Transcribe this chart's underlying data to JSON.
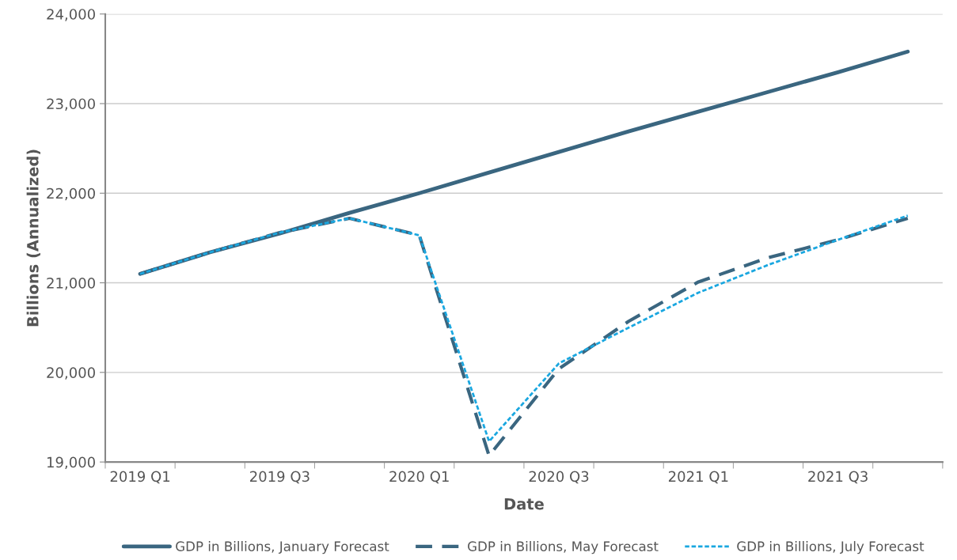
{
  "chart_data": {
    "type": "line",
    "xlabel": "Date",
    "ylabel": "Billions (Annualized)",
    "categories": [
      "2019 Q1",
      null,
      "2019 Q3",
      null,
      "2020 Q1",
      null,
      "2020 Q3",
      null,
      "2021 Q1",
      null,
      "2021 Q3",
      null
    ],
    "series": [
      {
        "name": "GDP in Billions, January Forecast",
        "color": "#3a6680",
        "line_style": "solid",
        "values": [
          21100,
          21340,
          21550,
          21780,
          22000,
          22230,
          22460,
          22690,
          22910,
          23130,
          23350,
          23580
        ]
      },
      {
        "name": "GDP in Billions, May Forecast",
        "color": "#3a6680",
        "line_style": "dashed",
        "values": [
          21100,
          21340,
          21560,
          21720,
          21530,
          19070,
          20040,
          20570,
          21010,
          21280,
          21480,
          21720
        ]
      },
      {
        "name": "GDP in Billions, July Forecast",
        "color": "#1aa7e0",
        "line_style": "dotted",
        "values": [
          21100,
          21340,
          21560,
          21720,
          21530,
          19230,
          20100,
          20500,
          20890,
          21200,
          21480,
          21750
        ]
      }
    ],
    "ylim": [
      19000,
      24000
    ],
    "yticks": [
      {
        "value": 19000,
        "label": "19,000"
      },
      {
        "value": 20000,
        "label": "20,000"
      },
      {
        "value": 21000,
        "label": "21,000"
      },
      {
        "value": 22000,
        "label": "22,000"
      },
      {
        "value": 23000,
        "label": "23,000"
      },
      {
        "value": 24000,
        "label": "24,000"
      }
    ],
    "grid": "y",
    "legend": "bottom",
    "marker": "none"
  }
}
